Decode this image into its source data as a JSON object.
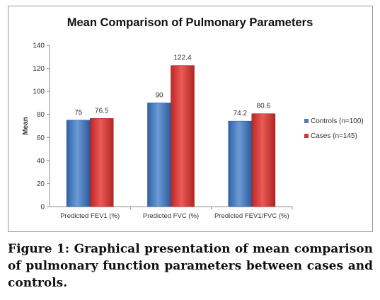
{
  "chart_data": {
    "type": "bar",
    "title": "Mean Comparison of Pulmonary Parameters",
    "xlabel": "",
    "ylabel": "Mean",
    "ylim": [
      0,
      140
    ],
    "yticks": [
      0,
      20,
      40,
      60,
      80,
      100,
      120,
      140
    ],
    "categories": [
      "Predicted FEV1 (%)",
      "Predicted FVC (%)",
      "Predicted FEV1/FVC (%)"
    ],
    "series": [
      {
        "name": "Controls (n=100)",
        "values": [
          75,
          90,
          74.2
        ],
        "labels": [
          "75",
          "90",
          "74.2"
        ],
        "color": "#4a7ebb"
      },
      {
        "name": "Cases (n=145)",
        "values": [
          76.5,
          122.4,
          80.6
        ],
        "labels": [
          "76.5",
          "122.4",
          "80.6"
        ],
        "color": "#cf3a36"
      }
    ],
    "grid": false,
    "legend": "right"
  },
  "caption": "Figure 1: Graphical presentation of mean comparison of pulmonary function parameters between cases and controls."
}
